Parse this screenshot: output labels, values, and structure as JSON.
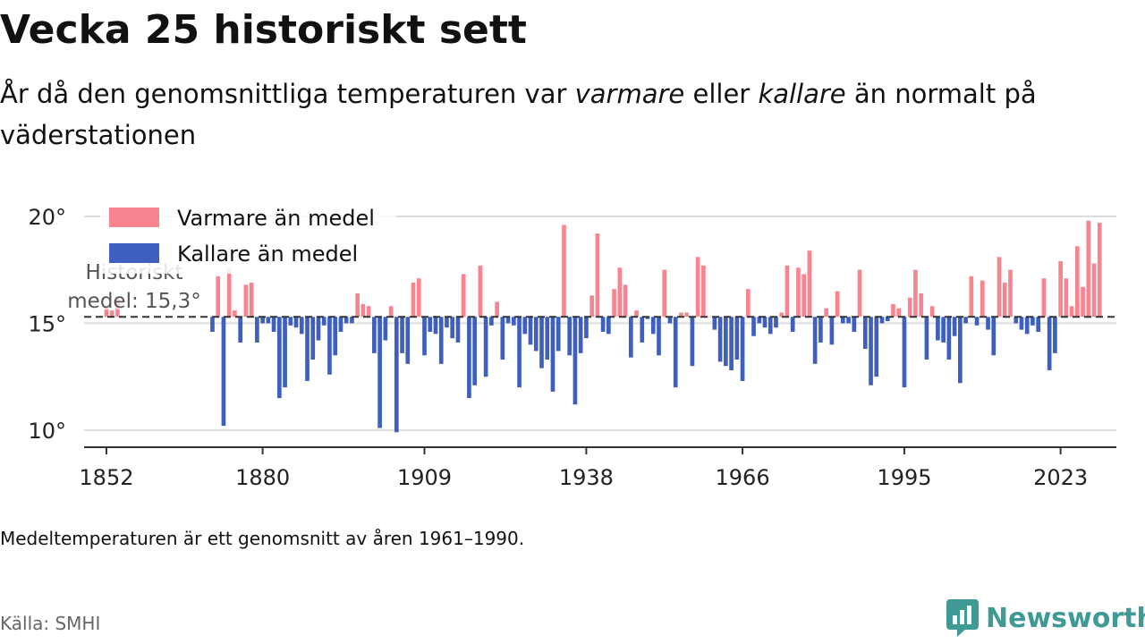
{
  "title": "Vecka 25 historiskt sett",
  "subtitle": {
    "part1": "År då den genomsnittliga temperaturen var ",
    "warm_word": "varmare",
    "part2": " eller ",
    "cold_word": "kallare",
    "part3": " än normalt på väderstationen"
  },
  "note": "Medeltemperaturen är ett genomsnitt av åren 1961–1990.",
  "source": "Källa: SMHI",
  "brand": "Newsworthy",
  "colors": {
    "warm": "#f7848f",
    "cold": "#3f5fbf",
    "grid": "#dddddd",
    "axis": "#333333",
    "brand": "#3f9a95"
  },
  "chart_data": {
    "type": "bar",
    "xlim": [
      1848,
      1030
    ],
    "ylim": [
      9.2,
      20.5
    ],
    "baseline": 15.3,
    "baseline_label": "Historiskt medel: 15,3°",
    "baseline_label_lines": [
      "Historiskt",
      "medel: 15,3°"
    ],
    "y_ticks": [
      10,
      15,
      20
    ],
    "y_tick_labels": [
      "10°",
      "15°",
      "20°"
    ],
    "x_ticks": [
      1852,
      1880,
      1909,
      1938,
      1966,
      1995,
      2023
    ],
    "x_tick_labels": [
      "1852",
      "1880",
      "1909",
      "1938",
      "1966",
      "1995",
      "2023"
    ],
    "legend": [
      {
        "key": "warm",
        "label": "Varmare än medel"
      },
      {
        "key": "cold",
        "label": "Kallare än medel"
      }
    ],
    "legend_position": "top-left",
    "grid": true,
    "values": {
      "1852": 15.8,
      "1853": 15.6,
      "1854": 16.2,
      "1871": 14.6,
      "1872": 17.2,
      "1873": 10.2,
      "1874": 17.6,
      "1875": 15.6,
      "1876": 14.1,
      "1877": 16.8,
      "1878": 16.9,
      "1879": 14.1,
      "1880": 15.0,
      "1881": 15.0,
      "1882": 14.6,
      "1883": 11.5,
      "1884": 12.0,
      "1885": 14.9,
      "1886": 14.8,
      "1887": 14.5,
      "1888": 12.3,
      "1889": 13.3,
      "1890": 14.2,
      "1891": 14.9,
      "1892": 12.6,
      "1893": 13.5,
      "1894": 14.6,
      "1895": 15.0,
      "1896": 15.0,
      "1897": 16.4,
      "1898": 15.9,
      "1899": 15.8,
      "1900": 13.6,
      "1901": 10.1,
      "1902": 14.2,
      "1903": 15.8,
      "1904": 9.9,
      "1905": 13.6,
      "1906": 13.1,
      "1907": 16.9,
      "1908": 17.1,
      "1909": 13.5,
      "1910": 14.6,
      "1911": 14.5,
      "1912": 13.1,
      "1913": 14.8,
      "1914": 14.3,
      "1915": 14.1,
      "1916": 17.3,
      "1917": 11.5,
      "1918": 12.1,
      "1919": 17.7,
      "1920": 12.5,
      "1921": 14.9,
      "1922": 16.0,
      "1923": 13.3,
      "1924": 15.0,
      "1925": 14.9,
      "1926": 12.0,
      "1927": 14.5,
      "1928": 14.0,
      "1929": 13.7,
      "1930": 12.9,
      "1931": 13.3,
      "1932": 11.8,
      "1933": 13.7,
      "1934": 19.6,
      "1935": 13.5,
      "1936": 11.2,
      "1937": 13.6,
      "1938": 14.3,
      "1939": 16.3,
      "1940": 19.2,
      "1941": 14.6,
      "1942": 14.5,
      "1943": 16.6,
      "1944": 17.6,
      "1945": 16.8,
      "1946": 13.4,
      "1947": 15.6,
      "1948": 14.1,
      "1949": 15.2,
      "1950": 14.5,
      "1951": 13.5,
      "1952": 17.5,
      "1953": 15.0,
      "1954": 12.0,
      "1955": 15.5,
      "1956": 15.5,
      "1957": 13.0,
      "1958": 18.1,
      "1959": 17.7,
      "1960": 15.3,
      "1961": 14.7,
      "1962": 13.2,
      "1963": 13.0,
      "1964": 12.8,
      "1965": 13.3,
      "1966": 12.3,
      "1967": 16.6,
      "1968": 14.4,
      "1969": 15.0,
      "1970": 14.8,
      "1971": 14.5,
      "1972": 14.8,
      "1973": 15.5,
      "1974": 17.7,
      "1975": 14.6,
      "1976": 17.6,
      "1977": 17.3,
      "1978": 18.4,
      "1979": 13.1,
      "1980": 14.1,
      "1981": 15.7,
      "1982": 14.0,
      "1983": 16.5,
      "1984": 15.0,
      "1985": 15.0,
      "1986": 14.6,
      "1987": 17.5,
      "1988": 13.8,
      "1989": 12.1,
      "1990": 12.5,
      "1991": 15.0,
      "1992": 15.1,
      "1993": 15.9,
      "1994": 15.7,
      "1995": 12.0,
      "1996": 16.2,
      "1997": 17.5,
      "1998": 16.4,
      "1999": 13.3,
      "2000": 15.8,
      "2001": 14.2,
      "2002": 14.1,
      "2003": 13.3,
      "2004": 14.4,
      "2005": 12.2,
      "2006": 15.0,
      "2007": 17.2,
      "2008": 14.9,
      "2009": 17.0,
      "2010": 14.7,
      "2011": 13.5,
      "2012": 18.1,
      "2013": 16.9,
      "2014": 17.5,
      "2015": 15.0,
      "2016": 14.7,
      "2017": 14.5,
      "2018": 14.9,
      "2019": 14.6,
      "2020": 17.1,
      "2021": 12.8,
      "2022": 13.6,
      "2023": 17.9,
      "2024": 17.1,
      "2025": 15.8,
      "2026": 18.6,
      "2027": 16.7,
      "2028": 19.8,
      "2029": 17.8,
      "2030": 19.7
    }
  }
}
